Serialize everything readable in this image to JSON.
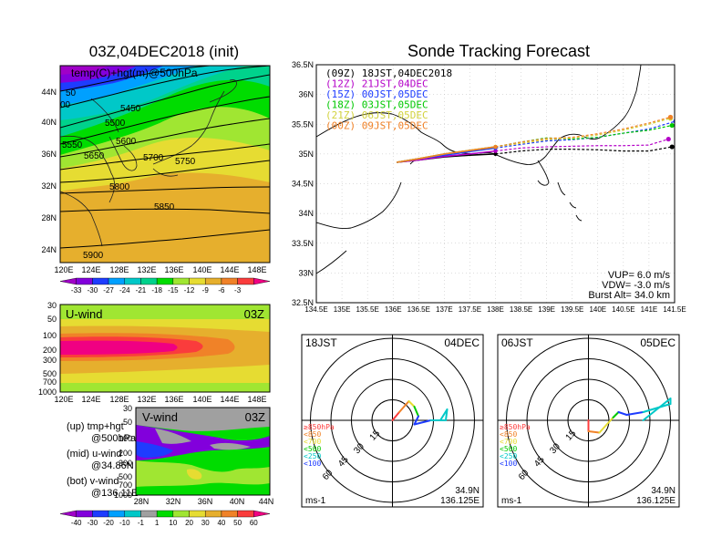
{
  "map_panel": {
    "title": "03Z,04DEC2018 (init)",
    "subtitle": "temp(C)+hgt(m)@500hPa",
    "lat_ticks": [
      "44N",
      "40N",
      "36N",
      "32N",
      "28N",
      "24N"
    ],
    "lon_ticks": [
      "120E",
      "124E",
      "128E",
      "132E",
      "136E",
      "140E",
      "144E",
      "148E"
    ],
    "contour_labels": [
      "5450",
      "5500",
      "5550",
      "5600",
      "5650",
      "5700",
      "5750",
      "5800",
      "5850",
      "5900",
      "50",
      "00"
    ],
    "colorbar_labels": [
      "-33",
      "-30",
      "-27",
      "-24",
      "-21",
      "-18",
      "-15",
      "-12",
      "-9",
      "-6",
      "-3"
    ],
    "colorbar_colors": [
      "#a000c8",
      "#8200dc",
      "#1e3cff",
      "#00a0ff",
      "#00c8c8",
      "#00d28c",
      "#00dc00",
      "#a0e632",
      "#e6dc32",
      "#e6af2d",
      "#f08228",
      "#fa3c3c",
      "#f00082"
    ]
  },
  "u_panel": {
    "title": "U-wind",
    "time": "03Z",
    "p_ticks": [
      "30",
      "50",
      "100",
      "200",
      "300",
      "500",
      "700",
      "1000"
    ],
    "lon_ticks": [
      "120E",
      "124E",
      "128E",
      "132E",
      "136E",
      "140E",
      "144E",
      "148E"
    ]
  },
  "v_panel": {
    "title": "V-wind",
    "time": "03Z",
    "p_ticks": [
      "30",
      "50",
      "100",
      "200",
      "300",
      "500",
      "700",
      "1000"
    ],
    "lat_ticks": [
      "28N",
      "32N",
      "36N",
      "40N",
      "44N"
    ],
    "colorbar_labels": [
      "-40",
      "-30",
      "-20",
      "-10",
      "-1",
      "1",
      "10",
      "20",
      "30",
      "40",
      "50",
      "60"
    ],
    "colorbar_colors": [
      "#a000c8",
      "#8200dc",
      "#1e3cff",
      "#00a0ff",
      "#00c8c8",
      "#a0a0a0",
      "#00dc00",
      "#a0e632",
      "#e6dc32",
      "#e6af2d",
      "#f08228",
      "#fa3c3c",
      "#f00082"
    ]
  },
  "legend_notes": [
    [
      "(up) tmp+hgt",
      "@500hPa"
    ],
    [
      "(mid) u-wind",
      "@34.86N"
    ],
    [
      "(bot) v-wind",
      "@136.11E"
    ]
  ],
  "track_panel": {
    "title": "Sonde Tracking Forecast",
    "lat_ticks": [
      "36.5N",
      "36N",
      "35.5N",
      "35N",
      "34.5N",
      "34N",
      "33.5N",
      "33N",
      "32.5N"
    ],
    "lon_ticks": [
      "134.5E",
      "135E",
      "135.5E",
      "136E",
      "136.5E",
      "137E",
      "137.5E",
      "138E",
      "138.5E",
      "139E",
      "139.5E",
      "140E",
      "140.5E",
      "141E",
      "141.5E"
    ],
    "legend": [
      {
        "label": "(09Z)  18JST,04DEC2018",
        "color": "#000000"
      },
      {
        "label": "(12Z)  21JST,04DEC",
        "color": "#b400c8"
      },
      {
        "label": "(15Z)  00JST,05DEC",
        "color": "#1e3cff"
      },
      {
        "label": "(18Z)  03JST,05DEC",
        "color": "#00c800"
      },
      {
        "label": "(21Z)  06JST,05DEC",
        "color": "#d2d23c"
      },
      {
        "label": "(00Z)  09JST,05DEC",
        "color": "#f08228"
      }
    ],
    "params": [
      "VUP=  6.0  m/s",
      "VDW= -3.0  m/s",
      "Burst Alt=  34.0  km"
    ]
  },
  "hodo_left": {
    "time": "18JST",
    "date": "04DEC",
    "ring_labels": [
      "15",
      "30",
      "45",
      "60"
    ],
    "levels": [
      {
        "label": "≥850hPa",
        "color": "#ff3c3c"
      },
      {
        "label": "<850",
        "color": "#f08228"
      },
      {
        "label": "<700",
        "color": "#e6dc32"
      },
      {
        "label": "<500",
        "color": "#00c800"
      },
      {
        "label": "<250",
        "color": "#00c8c8"
      },
      {
        "label": "<100",
        "color": "#1e3cff"
      }
    ],
    "units": "ms-1",
    "lat": "34.9N",
    "lon": "136.125E"
  },
  "hodo_right": {
    "time": "06JST",
    "date": "05DEC",
    "ring_labels": [
      "15",
      "30",
      "45",
      "60"
    ],
    "levels": [
      {
        "label": "≥850hPa",
        "color": "#ff3c3c"
      },
      {
        "label": "<850",
        "color": "#f08228"
      },
      {
        "label": "<700",
        "color": "#e6dc32"
      },
      {
        "label": "<500",
        "color": "#00c800"
      },
      {
        "label": "<250",
        "color": "#00c8c8"
      },
      {
        "label": "<100",
        "color": "#1e3cff"
      }
    ],
    "units": "ms-1",
    "lat": "34.9N",
    "lon": "136.125E"
  },
  "chart_data": [
    {
      "type": "heatmap",
      "title": "03Z,04DEC2018 (init)",
      "subtitle": "temp(C)+hgt(m)@500hPa",
      "x_range_deg_E": [
        120,
        150
      ],
      "y_range_deg_N": [
        22,
        47
      ],
      "contours_m": [
        5450,
        5500,
        5550,
        5600,
        5650,
        5700,
        5750,
        5800,
        5850,
        5900
      ]
    },
    {
      "type": "line",
      "title": "Sonde Tracking Forecast",
      "xlim": [
        134.5,
        141.5
      ],
      "ylim": [
        32.5,
        36.5
      ],
      "series": [
        {
          "name": "(09Z)  18JST,04DEC2018",
          "x": [
            136.07,
            136.5,
            137.0,
            137.5,
            138.0,
            138.5,
            139.0,
            139.5,
            140.0,
            140.5,
            141.0,
            141.45
          ],
          "y": [
            34.86,
            34.9,
            34.95,
            34.98,
            35.0,
            35.05,
            35.08,
            35.08,
            35.07,
            35.05,
            35.05,
            35.12
          ]
        },
        {
          "name": "(12Z)  21JST,04DEC",
          "x": [
            136.07,
            136.5,
            137.0,
            137.5,
            138.0,
            138.5,
            139.0,
            139.5,
            140.0,
            140.5,
            141.0,
            141.38
          ],
          "y": [
            34.86,
            34.9,
            34.96,
            35.0,
            35.05,
            35.1,
            35.12,
            35.13,
            35.14,
            35.14,
            35.15,
            35.25
          ]
        },
        {
          "name": "(15Z)  00JST,05DEC",
          "x": [
            136.07,
            136.5,
            137.0,
            137.5,
            138.0,
            138.5,
            139.0,
            139.5,
            140.0,
            140.5,
            141.0,
            141.52
          ],
          "y": [
            34.86,
            34.92,
            34.98,
            35.04,
            35.1,
            35.16,
            35.22,
            35.24,
            35.28,
            35.35,
            35.42,
            35.55
          ]
        },
        {
          "name": "(18Z)  03JST,05DEC",
          "x": [
            136.07,
            136.5,
            137.0,
            137.5,
            138.0,
            138.5,
            139.0,
            139.5,
            140.0,
            140.5,
            141.0,
            141.45
          ],
          "y": [
            34.86,
            34.92,
            35.0,
            35.06,
            35.12,
            35.2,
            35.27,
            35.25,
            35.28,
            35.35,
            35.4,
            35.48
          ]
        },
        {
          "name": "(21Z)  06JST,05DEC",
          "x": [
            136.07,
            136.5,
            137.0,
            137.5,
            138.0,
            138.5,
            139.0,
            139.5,
            140.0,
            140.5,
            141.0,
            141.42
          ],
          "y": [
            34.86,
            34.92,
            35.0,
            35.06,
            35.12,
            35.18,
            35.24,
            35.27,
            35.32,
            35.4,
            35.5,
            35.6
          ]
        },
        {
          "name": "(00Z)  09JST,05DEC",
          "x": [
            136.07,
            136.5,
            137.0,
            137.5,
            138.0,
            138.5,
            139.0,
            139.5,
            140.0,
            140.5,
            141.0,
            141.42
          ],
          "y": [
            34.86,
            34.92,
            35.0,
            35.06,
            35.12,
            35.2,
            35.26,
            35.28,
            35.34,
            35.42,
            35.52,
            35.62
          ]
        }
      ]
    },
    {
      "type": "line",
      "title": "18JST 04DEC",
      "units": "ms-1",
      "u_m_per_s": [
        0,
        5,
        12,
        16,
        19,
        16,
        28,
        39,
        40,
        35
      ],
      "v_m_per_s": [
        0,
        6,
        14,
        10,
        3,
        -3,
        0,
        0,
        8,
        0
      ],
      "level_colors": [
        "#ff3c3c",
        "#ff3c3c",
        "#f08228",
        "#e6dc32",
        "#00c800",
        "#1e3cff",
        "#1e3cff",
        "#00c8c8",
        "#00c8c8",
        "#00c8c8"
      ]
    },
    {
      "type": "line",
      "title": "06JST 05DEC",
      "units": "ms-1",
      "u_m_per_s": [
        0,
        0,
        8,
        18,
        22,
        28,
        40,
        60,
        60,
        40
      ],
      "v_m_per_s": [
        0,
        -8,
        -9,
        2,
        6,
        4,
        6,
        12,
        16,
        0
      ],
      "level_colors": [
        "#ff3c3c",
        "#ff3c3c",
        "#f08228",
        "#e6dc32",
        "#00c800",
        "#1e3cff",
        "#1e3cff",
        "#00c8c8",
        "#00c8c8",
        "#00c8c8"
      ]
    }
  ]
}
